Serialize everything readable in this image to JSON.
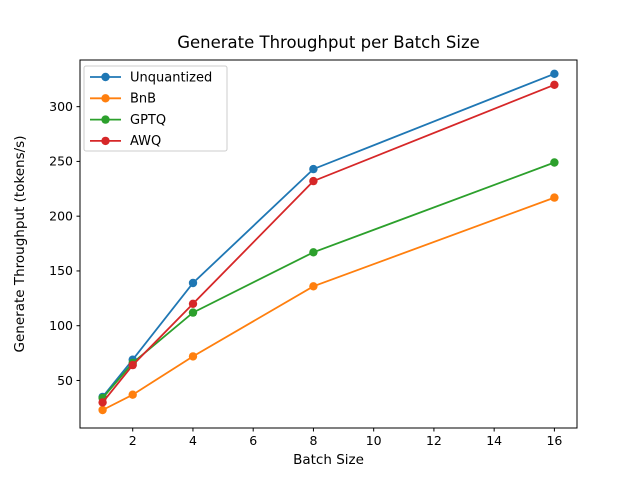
{
  "chart_data": {
    "type": "line",
    "title": "Generate Throughput per Batch Size",
    "xlabel": "Batch Size",
    "ylabel": "Generate Throughput (tokens/s)",
    "x": [
      1,
      2,
      4,
      8,
      16
    ],
    "series": [
      {
        "name": "Unquantized",
        "color": "#1f77b4",
        "values": [
          35,
          69,
          139,
          243,
          330
        ]
      },
      {
        "name": "BnB",
        "color": "#ff7f0e",
        "values": [
          23,
          37,
          72,
          136,
          217
        ]
      },
      {
        "name": "GPTQ",
        "color": "#2ca02c",
        "values": [
          34,
          66,
          112,
          167,
          249
        ]
      },
      {
        "name": "AWQ",
        "color": "#d62728",
        "values": [
          30,
          64,
          120,
          232,
          320
        ]
      }
    ],
    "xticks": [
      2,
      4,
      6,
      8,
      10,
      12,
      14,
      16
    ],
    "yticks": [
      50,
      100,
      150,
      200,
      250,
      300
    ],
    "xlim": [
      0.25,
      16.75
    ],
    "ylim": [
      6.6,
      342.6
    ],
    "grid": false,
    "marker": "o",
    "legend_position": "upper left",
    "colors": {
      "axes": "#000000",
      "legend_border": "#cccccc",
      "background": "#ffffff"
    }
  }
}
